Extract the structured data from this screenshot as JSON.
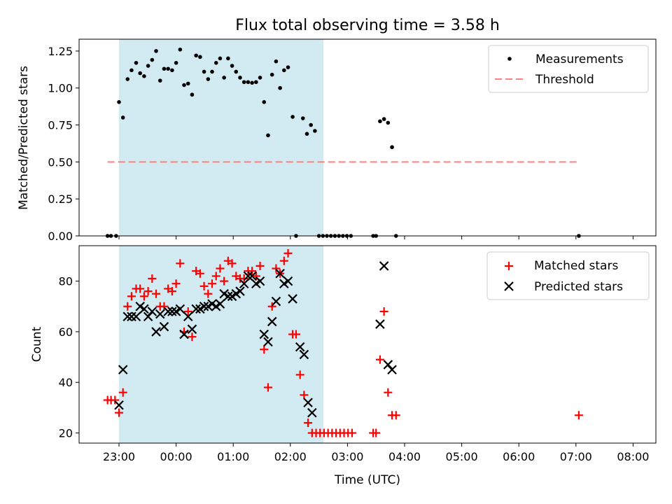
{
  "chart_data": [
    {
      "type": "scatter",
      "id": "top",
      "title": "Flux total observing time = 3.58 h",
      "ylabel": "Matched/Predicted stars",
      "xlabel": "",
      "xlim": [
        -0.68,
        8.5
      ],
      "ylim": [
        0,
        1.33
      ],
      "yticks": [
        0.0,
        0.25,
        0.5,
        0.75,
        1.0,
        1.25
      ],
      "ytick_labels": [
        "0.00",
        "0.25",
        "0.50",
        "0.75",
        "1.00",
        "1.25"
      ],
      "shaded_span": [
        0.0,
        3.58
      ],
      "shade_color": "#add8e6",
      "series": [
        {
          "name": "Measurements",
          "marker": "dot",
          "color": "#000000",
          "points": [
            [
              -0.2,
              0
            ],
            [
              -0.14,
              0
            ],
            [
              -0.05,
              0
            ],
            [
              0.0,
              0.905
            ],
            [
              0.07,
              0.8
            ],
            [
              0.15,
              1.06
            ],
            [
              0.22,
              1.12
            ],
            [
              0.3,
              1.17
            ],
            [
              0.37,
              1.1
            ],
            [
              0.44,
              1.08
            ],
            [
              0.51,
              1.15
            ],
            [
              0.58,
              1.19
            ],
            [
              0.65,
              1.25
            ],
            [
              0.72,
              1.05
            ],
            [
              0.79,
              1.13
            ],
            [
              0.86,
              1.13
            ],
            [
              0.93,
              1.12
            ],
            [
              1.0,
              1.17
            ],
            [
              1.07,
              1.26
            ],
            [
              1.14,
              1.02
            ],
            [
              1.21,
              1.03
            ],
            [
              1.28,
              0.955
            ],
            [
              1.35,
              1.22
            ],
            [
              1.42,
              1.21
            ],
            [
              1.49,
              1.11
            ],
            [
              1.56,
              1.06
            ],
            [
              1.63,
              1.11
            ],
            [
              1.7,
              1.17
            ],
            [
              1.77,
              1.2
            ],
            [
              1.84,
              1.07
            ],
            [
              1.91,
              1.2
            ],
            [
              1.98,
              1.15
            ],
            [
              2.05,
              1.11
            ],
            [
              2.12,
              1.07
            ],
            [
              2.19,
              1.04
            ],
            [
              2.26,
              1.04
            ],
            [
              2.33,
              1.035
            ],
            [
              2.4,
              1.04
            ],
            [
              2.47,
              1.07
            ],
            [
              2.54,
              0.905
            ],
            [
              2.61,
              0.68
            ],
            [
              2.68,
              1.09
            ],
            [
              2.75,
              1.18
            ],
            [
              2.82,
              1.0
            ],
            [
              2.89,
              1.12
            ],
            [
              2.96,
              1.14
            ],
            [
              3.04,
              0.805
            ],
            [
              3.1,
              0
            ],
            [
              3.22,
              0.795
            ],
            [
              3.29,
              0.69
            ],
            [
              3.36,
              0.75
            ],
            [
              3.43,
              0.71
            ],
            [
              3.5,
              0
            ],
            [
              3.57,
              0
            ],
            [
              3.64,
              0
            ],
            [
              3.71,
              0
            ],
            [
              3.78,
              0
            ],
            [
              3.85,
              0
            ],
            [
              3.92,
              0
            ],
            [
              3.99,
              0
            ],
            [
              4.06,
              0
            ],
            [
              4.45,
              0
            ],
            [
              4.5,
              0
            ],
            [
              4.57,
              0.775
            ],
            [
              4.64,
              0.79
            ],
            [
              4.71,
              0.765
            ],
            [
              4.78,
              0.6
            ],
            [
              4.85,
              0
            ],
            [
              8.05,
              0
            ]
          ]
        },
        {
          "name": "Threshold",
          "marker": "dashed-line",
          "color": "#ff8080",
          "points": [
            [
              -0.2,
              0.5
            ],
            [
              8.05,
              0.5
            ]
          ]
        }
      ],
      "legend_position": "top-right",
      "legend": [
        "Measurements",
        "Threshold"
      ]
    },
    {
      "type": "scatter",
      "id": "bottom",
      "title": "",
      "ylabel": "Count",
      "xlabel": "Time (UTC)",
      "xlim": [
        -0.68,
        8.5
      ],
      "ylim": [
        16,
        94
      ],
      "yticks": [
        20,
        40,
        60,
        80
      ],
      "ytick_labels": [
        "20",
        "40",
        "60",
        "80"
      ],
      "xticks": [
        0,
        1,
        2,
        3,
        4,
        5,
        6,
        7,
        8,
        9
      ],
      "xtick_labels": [
        "23:00",
        "00:00",
        "01:00",
        "02:00",
        "03:00",
        "04:00",
        "05:00",
        "06:00",
        "07:00",
        "08:00"
      ],
      "shaded_span": [
        0.0,
        3.58
      ],
      "shade_color": "#add8e6",
      "series": [
        {
          "name": "Matched stars",
          "marker": "plus",
          "color": "#ff0000",
          "points": [
            [
              -0.2,
              33
            ],
            [
              -0.14,
              33
            ],
            [
              -0.07,
              33
            ],
            [
              0.0,
              28
            ],
            [
              0.07,
              36
            ],
            [
              0.15,
              70
            ],
            [
              0.22,
              74
            ],
            [
              0.3,
              77
            ],
            [
              0.37,
              77
            ],
            [
              0.44,
              74
            ],
            [
              0.51,
              76
            ],
            [
              0.58,
              81
            ],
            [
              0.65,
              75
            ],
            [
              0.72,
              70
            ],
            [
              0.79,
              70
            ],
            [
              0.86,
              77
            ],
            [
              0.93,
              76
            ],
            [
              1.0,
              79
            ],
            [
              1.07,
              87
            ],
            [
              1.14,
              60
            ],
            [
              1.21,
              68
            ],
            [
              1.28,
              58
            ],
            [
              1.35,
              84
            ],
            [
              1.42,
              83
            ],
            [
              1.49,
              78
            ],
            [
              1.56,
              75
            ],
            [
              1.63,
              79
            ],
            [
              1.7,
              82
            ],
            [
              1.77,
              85
            ],
            [
              1.84,
              80
            ],
            [
              1.91,
              88
            ],
            [
              1.98,
              87
            ],
            [
              2.05,
              82
            ],
            [
              2.12,
              81
            ],
            [
              2.19,
              81
            ],
            [
              2.26,
              84
            ],
            [
              2.33,
              84
            ],
            [
              2.4,
              82
            ],
            [
              2.47,
              86
            ],
            [
              2.54,
              53
            ],
            [
              2.61,
              38
            ],
            [
              2.68,
              70
            ],
            [
              2.75,
              85
            ],
            [
              2.82,
              83
            ],
            [
              2.89,
              88
            ],
            [
              2.96,
              91
            ],
            [
              3.04,
              59
            ],
            [
              3.1,
              59
            ],
            [
              3.17,
              43
            ],
            [
              3.24,
              35
            ],
            [
              3.31,
              24
            ],
            [
              3.38,
              20
            ],
            [
              3.45,
              20
            ],
            [
              3.52,
              20
            ],
            [
              3.59,
              20
            ],
            [
              3.66,
              20
            ],
            [
              3.73,
              20
            ],
            [
              3.8,
              20
            ],
            [
              3.87,
              20
            ],
            [
              3.94,
              20
            ],
            [
              4.01,
              20
            ],
            [
              4.08,
              20
            ],
            [
              4.45,
              20
            ],
            [
              4.5,
              20
            ],
            [
              4.57,
              49
            ],
            [
              4.64,
              68
            ],
            [
              4.71,
              36
            ],
            [
              4.78,
              27
            ],
            [
              4.85,
              27
            ],
            [
              8.05,
              27
            ]
          ]
        },
        {
          "name": "Predicted stars",
          "marker": "x",
          "color": "#000000",
          "points": [
            [
              0.0,
              31
            ],
            [
              0.07,
              45
            ],
            [
              0.15,
              66
            ],
            [
              0.22,
              66
            ],
            [
              0.3,
              66
            ],
            [
              0.37,
              70
            ],
            [
              0.44,
              69
            ],
            [
              0.51,
              66
            ],
            [
              0.58,
              68
            ],
            [
              0.65,
              60
            ],
            [
              0.72,
              67
            ],
            [
              0.79,
              62
            ],
            [
              0.86,
              68
            ],
            [
              0.93,
              68
            ],
            [
              1.0,
              68
            ],
            [
              1.07,
              69
            ],
            [
              1.14,
              59
            ],
            [
              1.21,
              66
            ],
            [
              1.28,
              61
            ],
            [
              1.35,
              69
            ],
            [
              1.42,
              69
            ],
            [
              1.49,
              70
            ],
            [
              1.56,
              70
            ],
            [
              1.63,
              71
            ],
            [
              1.7,
              70
            ],
            [
              1.77,
              71
            ],
            [
              1.84,
              75
            ],
            [
              1.91,
              74
            ],
            [
              1.98,
              74
            ],
            [
              2.05,
              75
            ],
            [
              2.12,
              76
            ],
            [
              2.19,
              79
            ],
            [
              2.26,
              82
            ],
            [
              2.33,
              82
            ],
            [
              2.4,
              79
            ],
            [
              2.47,
              80
            ],
            [
              2.54,
              59
            ],
            [
              2.61,
              56
            ],
            [
              2.68,
              64
            ],
            [
              2.75,
              72
            ],
            [
              2.82,
              83
            ],
            [
              2.89,
              79
            ],
            [
              2.96,
              80
            ],
            [
              3.04,
              73
            ],
            [
              3.17,
              54
            ],
            [
              3.24,
              51
            ],
            [
              3.31,
              32
            ],
            [
              3.38,
              28
            ],
            [
              4.57,
              63
            ],
            [
              4.64,
              86
            ],
            [
              4.71,
              47
            ],
            [
              4.78,
              45
            ]
          ]
        }
      ],
      "legend_position": "top-right",
      "legend": [
        "Matched stars",
        "Predicted stars"
      ]
    }
  ]
}
